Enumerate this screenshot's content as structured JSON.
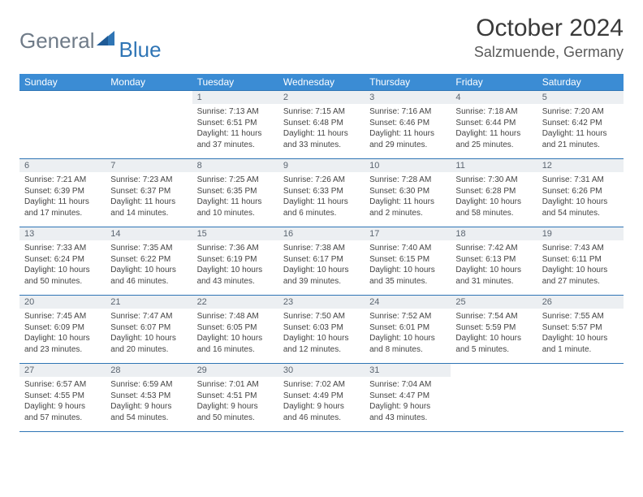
{
  "brand": {
    "general": "General",
    "blue": "Blue"
  },
  "title": "October 2024",
  "location": "Salzmuende, Germany",
  "colors": {
    "header_bg": "#3b8cd4",
    "border": "#2f75b5",
    "daynum_bg": "#eceff2",
    "text": "#333333"
  },
  "weekdays": [
    "Sunday",
    "Monday",
    "Tuesday",
    "Wednesday",
    "Thursday",
    "Friday",
    "Saturday"
  ],
  "weeks": [
    [
      null,
      null,
      {
        "n": "1",
        "sr": "7:13 AM",
        "ss": "6:51 PM",
        "dl": "11 hours and 37 minutes."
      },
      {
        "n": "2",
        "sr": "7:15 AM",
        "ss": "6:48 PM",
        "dl": "11 hours and 33 minutes."
      },
      {
        "n": "3",
        "sr": "7:16 AM",
        "ss": "6:46 PM",
        "dl": "11 hours and 29 minutes."
      },
      {
        "n": "4",
        "sr": "7:18 AM",
        "ss": "6:44 PM",
        "dl": "11 hours and 25 minutes."
      },
      {
        "n": "5",
        "sr": "7:20 AM",
        "ss": "6:42 PM",
        "dl": "11 hours and 21 minutes."
      }
    ],
    [
      {
        "n": "6",
        "sr": "7:21 AM",
        "ss": "6:39 PM",
        "dl": "11 hours and 17 minutes."
      },
      {
        "n": "7",
        "sr": "7:23 AM",
        "ss": "6:37 PM",
        "dl": "11 hours and 14 minutes."
      },
      {
        "n": "8",
        "sr": "7:25 AM",
        "ss": "6:35 PM",
        "dl": "11 hours and 10 minutes."
      },
      {
        "n": "9",
        "sr": "7:26 AM",
        "ss": "6:33 PM",
        "dl": "11 hours and 6 minutes."
      },
      {
        "n": "10",
        "sr": "7:28 AM",
        "ss": "6:30 PM",
        "dl": "11 hours and 2 minutes."
      },
      {
        "n": "11",
        "sr": "7:30 AM",
        "ss": "6:28 PM",
        "dl": "10 hours and 58 minutes."
      },
      {
        "n": "12",
        "sr": "7:31 AM",
        "ss": "6:26 PM",
        "dl": "10 hours and 54 minutes."
      }
    ],
    [
      {
        "n": "13",
        "sr": "7:33 AM",
        "ss": "6:24 PM",
        "dl": "10 hours and 50 minutes."
      },
      {
        "n": "14",
        "sr": "7:35 AM",
        "ss": "6:22 PM",
        "dl": "10 hours and 46 minutes."
      },
      {
        "n": "15",
        "sr": "7:36 AM",
        "ss": "6:19 PM",
        "dl": "10 hours and 43 minutes."
      },
      {
        "n": "16",
        "sr": "7:38 AM",
        "ss": "6:17 PM",
        "dl": "10 hours and 39 minutes."
      },
      {
        "n": "17",
        "sr": "7:40 AM",
        "ss": "6:15 PM",
        "dl": "10 hours and 35 minutes."
      },
      {
        "n": "18",
        "sr": "7:42 AM",
        "ss": "6:13 PM",
        "dl": "10 hours and 31 minutes."
      },
      {
        "n": "19",
        "sr": "7:43 AM",
        "ss": "6:11 PM",
        "dl": "10 hours and 27 minutes."
      }
    ],
    [
      {
        "n": "20",
        "sr": "7:45 AM",
        "ss": "6:09 PM",
        "dl": "10 hours and 23 minutes."
      },
      {
        "n": "21",
        "sr": "7:47 AM",
        "ss": "6:07 PM",
        "dl": "10 hours and 20 minutes."
      },
      {
        "n": "22",
        "sr": "7:48 AM",
        "ss": "6:05 PM",
        "dl": "10 hours and 16 minutes."
      },
      {
        "n": "23",
        "sr": "7:50 AM",
        "ss": "6:03 PM",
        "dl": "10 hours and 12 minutes."
      },
      {
        "n": "24",
        "sr": "7:52 AM",
        "ss": "6:01 PM",
        "dl": "10 hours and 8 minutes."
      },
      {
        "n": "25",
        "sr": "7:54 AM",
        "ss": "5:59 PM",
        "dl": "10 hours and 5 minutes."
      },
      {
        "n": "26",
        "sr": "7:55 AM",
        "ss": "5:57 PM",
        "dl": "10 hours and 1 minute."
      }
    ],
    [
      {
        "n": "27",
        "sr": "6:57 AM",
        "ss": "4:55 PM",
        "dl": "9 hours and 57 minutes."
      },
      {
        "n": "28",
        "sr": "6:59 AM",
        "ss": "4:53 PM",
        "dl": "9 hours and 54 minutes."
      },
      {
        "n": "29",
        "sr": "7:01 AM",
        "ss": "4:51 PM",
        "dl": "9 hours and 50 minutes."
      },
      {
        "n": "30",
        "sr": "7:02 AM",
        "ss": "4:49 PM",
        "dl": "9 hours and 46 minutes."
      },
      {
        "n": "31",
        "sr": "7:04 AM",
        "ss": "4:47 PM",
        "dl": "9 hours and 43 minutes."
      },
      null,
      null
    ]
  ],
  "labels": {
    "sunrise": "Sunrise:",
    "sunset": "Sunset:",
    "daylight": "Daylight:"
  }
}
